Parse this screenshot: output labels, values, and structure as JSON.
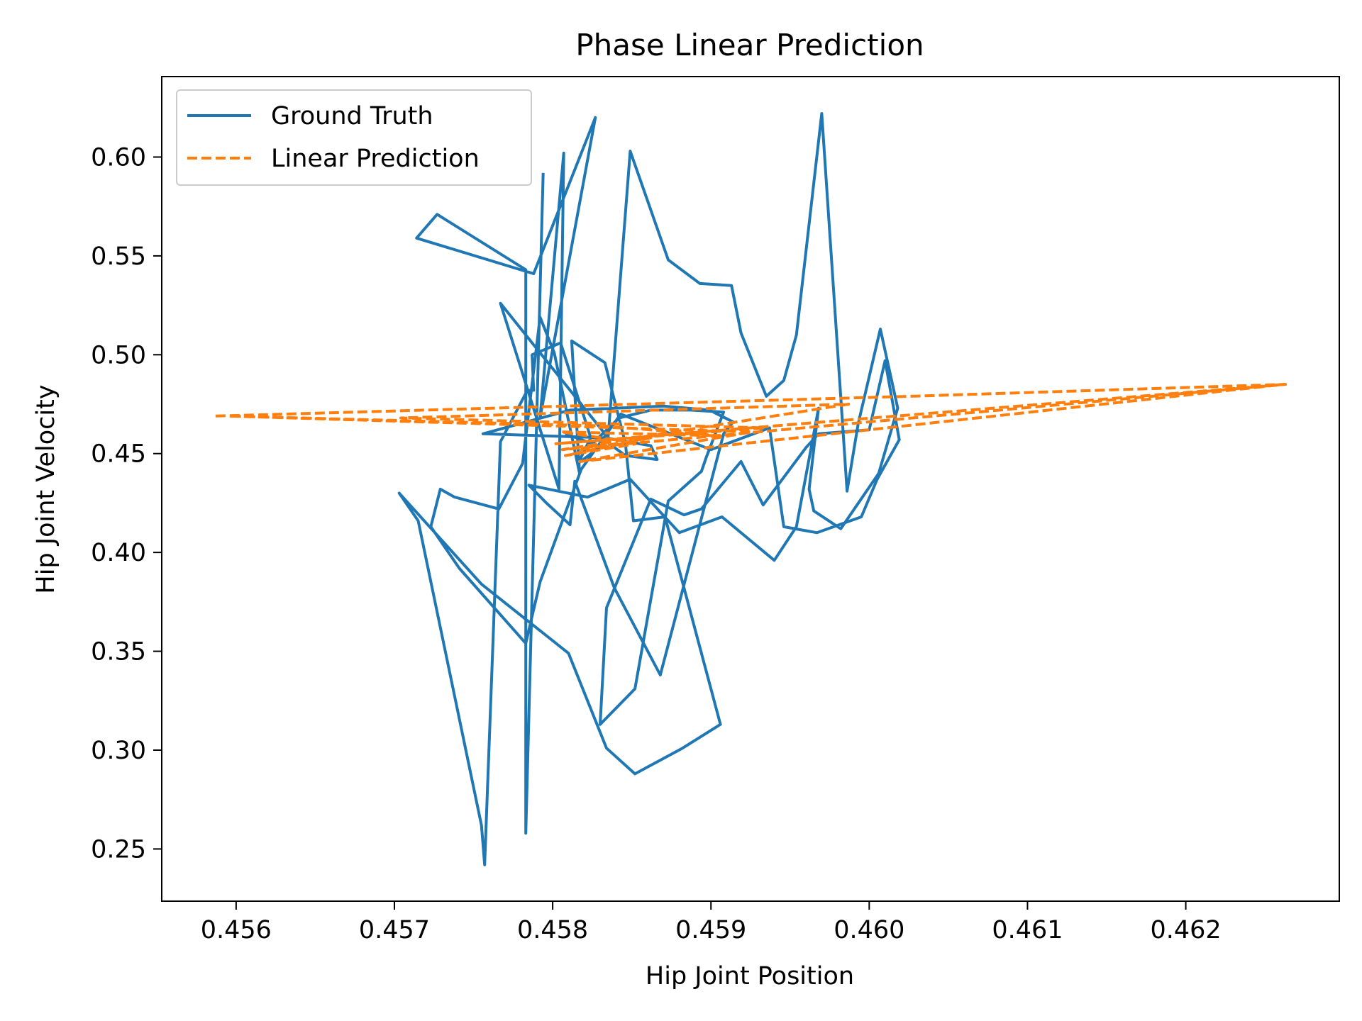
{
  "chart_data": {
    "type": "line",
    "title": "Phase Linear Prediction",
    "xlabel": "Hip Joint Position",
    "ylabel": "Hip Joint Velocity",
    "xlim": [
      0.45553,
      0.46297
    ],
    "ylim": [
      0.2236,
      0.6407
    ],
    "xticks": [
      0.456,
      0.457,
      0.458,
      0.459,
      0.46,
      0.461,
      0.462
    ],
    "xtick_labels": [
      "0.456",
      "0.457",
      "0.458",
      "0.459",
      "0.460",
      "0.461",
      "0.462"
    ],
    "yticks": [
      0.25,
      0.3,
      0.35,
      0.4,
      0.45,
      0.5,
      0.55,
      0.6
    ],
    "ytick_labels": [
      "0.25",
      "0.30",
      "0.35",
      "0.40",
      "0.45",
      "0.50",
      "0.55",
      "0.60"
    ],
    "grid": false,
    "legend_position": "upper-left",
    "series": [
      {
        "name": "Ground Truth",
        "style": "solid",
        "color": "#1f77b4",
        "x": [
          0.45794,
          0.45783,
          0.45783,
          0.45727,
          0.45714,
          0.45788,
          0.45827,
          0.45792,
          0.45807,
          0.45804,
          0.45767,
          0.45835,
          0.45849,
          0.45873,
          0.45893,
          0.45913,
          0.45919,
          0.45935,
          0.45946,
          0.45954,
          0.4597,
          0.45986,
          0.45993,
          0.46007,
          0.46018,
          0.46006,
          0.45982,
          0.45965,
          0.45962,
          0.45968,
          0.45954,
          0.4594,
          0.45907,
          0.4588,
          0.45849,
          0.45822,
          0.45785,
          0.45796,
          0.45811,
          0.45814,
          0.45839,
          0.45868,
          0.45908,
          0.45914,
          0.45899,
          0.4587,
          0.45811,
          0.45756,
          0.45833,
          0.45862,
          0.45866,
          0.45846,
          0.45834,
          0.45816,
          0.45824,
          0.45805,
          0.45787,
          0.45788,
          0.45784,
          0.45767,
          0.45757,
          0.45755,
          0.45715,
          0.45703,
          0.45755,
          0.4581,
          0.45834,
          0.45852,
          0.45882,
          0.45906,
          0.45871,
          0.45851,
          0.45846,
          0.45833,
          0.45812,
          0.45817,
          0.45801,
          0.45792,
          0.45781,
          0.45766,
          0.45738,
          0.45729,
          0.45723,
          0.45741,
          0.45783,
          0.45792,
          0.45818,
          0.45843,
          0.459,
          0.45937,
          0.45946,
          0.45967,
          0.45995,
          0.46005,
          0.46019,
          0.4601,
          0.46,
          0.45968,
          0.4596,
          0.45933,
          0.45919,
          0.45894,
          0.45883,
          0.45862,
          0.45834,
          0.4583,
          0.45852,
          0.45873,
          0.45894,
          0.45897,
          0.45908,
          0.45887,
          0.45862,
          0.45842,
          0.45825,
          0.45808
        ],
        "y": [
          0.592,
          0.258,
          0.543,
          0.571,
          0.559,
          0.541,
          0.62,
          0.468,
          0.602,
          0.432,
          0.526,
          0.458,
          0.603,
          0.548,
          0.536,
          0.535,
          0.511,
          0.479,
          0.487,
          0.51,
          0.622,
          0.431,
          0.465,
          0.513,
          0.473,
          0.44,
          0.412,
          0.421,
          0.432,
          0.473,
          0.413,
          0.396,
          0.418,
          0.41,
          0.437,
          0.428,
          0.434,
          0.425,
          0.414,
          0.436,
          0.382,
          0.338,
          0.46,
          0.466,
          0.472,
          0.474,
          0.472,
          0.46,
          0.458,
          0.454,
          0.447,
          0.449,
          0.456,
          0.445,
          0.458,
          0.506,
          0.5,
          0.482,
          0.482,
          0.456,
          0.242,
          0.262,
          0.416,
          0.43,
          0.384,
          0.349,
          0.301,
          0.288,
          0.301,
          0.313,
          0.418,
          0.416,
          0.455,
          0.496,
          0.507,
          0.44,
          0.501,
          0.519,
          0.445,
          0.422,
          0.428,
          0.432,
          0.413,
          0.392,
          0.354,
          0.385,
          0.442,
          0.47,
          0.452,
          0.463,
          0.413,
          0.41,
          0.418,
          0.437,
          0.457,
          0.497,
          0.462,
          0.46,
          0.453,
          0.424,
          0.446,
          0.422,
          0.419,
          0.427,
          0.372,
          0.313,
          0.331,
          0.426,
          0.441,
          0.448,
          0.471,
          0.472,
          0.472,
          0.468,
          0.455,
          0.46
        ]
      },
      {
        "name": "Linear Prediction",
        "style": "dashed",
        "color": "#ff7f0e",
        "x": [
          0.45587,
          0.46026,
          0.46263,
          0.45802,
          0.45934,
          0.45704,
          0.45987,
          0.45806,
          0.46262,
          0.45817,
          0.45926,
          0.45595,
          0.45832,
          0.45906,
          0.45805,
          0.45839,
          0.45818,
          0.45862,
          0.45808,
          0.45853
        ],
        "y": [
          0.469,
          0.479,
          0.485,
          0.455,
          0.463,
          0.468,
          0.475,
          0.452,
          0.485,
          0.446,
          0.461,
          0.469,
          0.464,
          0.459,
          0.461,
          0.457,
          0.452,
          0.458,
          0.449,
          0.455
        ]
      }
    ]
  }
}
